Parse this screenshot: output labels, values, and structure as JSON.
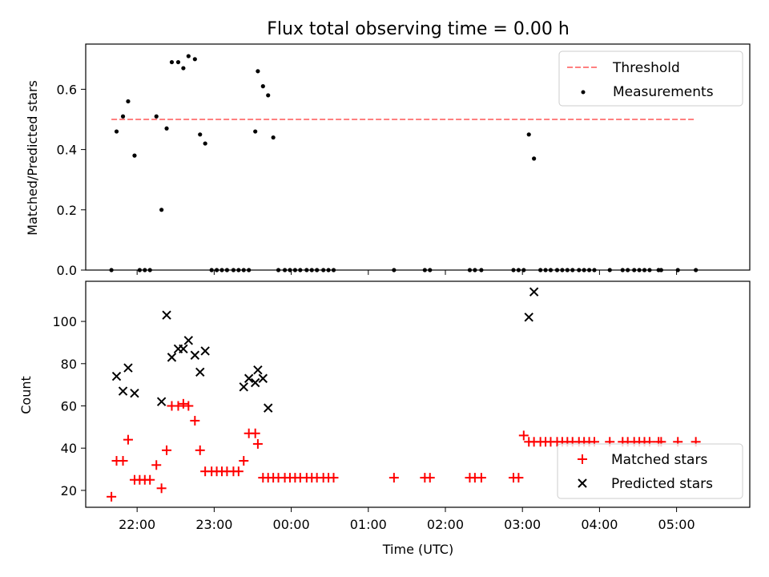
{
  "chart_data": [
    {
      "type": "scatter",
      "title": "Flux total observing time = 0.00 h",
      "xlabel": "",
      "ylabel": "Matched/Predicted stars",
      "xlim": [
        21.333,
        5.95
      ],
      "ylim": [
        0.0,
        0.75
      ],
      "yticks": [
        "0.0",
        "0.2",
        "0.4",
        "0.6"
      ],
      "yticks_values": [
        0.0,
        0.2,
        0.4,
        0.6
      ],
      "legend_position": "top-right",
      "threshold": {
        "name": "Threshold",
        "value": 0.5,
        "x_start": "21:40",
        "x_end": "05:15",
        "color": "#ff8080"
      },
      "series": [
        {
          "name": "Measurements",
          "color": "#000000",
          "marker": "dot",
          "x": [
            "21:40",
            "21:44",
            "21:49",
            "21:53",
            "21:58",
            "22:02",
            "22:06",
            "22:10",
            "22:15",
            "22:19",
            "22:23",
            "22:27",
            "22:32",
            "22:36",
            "22:40",
            "22:45",
            "22:49",
            "22:53",
            "22:58",
            "23:02",
            "23:06",
            "23:10",
            "23:15",
            "23:19",
            "23:23",
            "23:27",
            "23:32",
            "23:34",
            "23:38",
            "23:42",
            "23:46",
            "23:50",
            "23:55",
            "23:59",
            "00:03",
            "00:07",
            "00:12",
            "00:16",
            "00:20",
            "00:25",
            "00:29",
            "00:33",
            "01:20",
            "01:44",
            "01:48",
            "02:19",
            "02:23",
            "02:28",
            "02:53",
            "02:57",
            "03:01",
            "03:05",
            "03:09",
            "03:14",
            "03:18",
            "03:22",
            "03:27",
            "03:31",
            "03:35",
            "03:39",
            "03:44",
            "03:48",
            "03:52",
            "03:56",
            "04:08",
            "04:18",
            "04:22",
            "04:27",
            "04:31",
            "04:35",
            "04:39",
            "04:46",
            "04:48",
            "05:01",
            "05:15"
          ],
          "y": [
            0.0,
            0.46,
            0.51,
            0.56,
            0.38,
            0.0,
            0.0,
            0.0,
            0.51,
            0.2,
            0.47,
            0.69,
            0.69,
            0.67,
            0.71,
            0.7,
            0.45,
            0.42,
            0.0,
            0.0,
            0.0,
            0.0,
            0.0,
            0.0,
            0.0,
            0.0,
            0.46,
            0.66,
            0.61,
            0.58,
            0.44,
            0.0,
            0.0,
            0.0,
            0.0,
            0.0,
            0.0,
            0.0,
            0.0,
            0.0,
            0.0,
            0.0,
            0.0,
            0.0,
            0.0,
            0.0,
            0.0,
            0.0,
            0.0,
            0.0,
            0.0,
            0.45,
            0.37,
            0.0,
            0.0,
            0.0,
            0.0,
            0.0,
            0.0,
            0.0,
            0.0,
            0.0,
            0.0,
            0.0,
            0.0,
            0.0,
            0.0,
            0.0,
            0.0,
            0.0,
            0.0,
            0.0,
            0.0,
            0.0,
            0.0
          ]
        }
      ]
    },
    {
      "type": "scatter",
      "title": "",
      "xlabel": "Time (UTC)",
      "ylabel": "Count",
      "xlim": [
        21.333,
        5.95
      ],
      "ylim": [
        12,
        119
      ],
      "yticks": [
        "20",
        "40",
        "60",
        "80",
        "100"
      ],
      "yticks_values": [
        20,
        40,
        60,
        80,
        100
      ],
      "xticks": [
        "22:00",
        "23:00",
        "00:00",
        "01:00",
        "02:00",
        "03:00",
        "04:00",
        "05:00"
      ],
      "xticks_values": [
        "22:00",
        "23:00",
        "00:00",
        "01:00",
        "02:00",
        "03:00",
        "04:00",
        "05:00"
      ],
      "legend_position": "bottom-right",
      "series": [
        {
          "name": "Matched stars",
          "color": "#ff0000",
          "marker": "plus",
          "x": [
            "21:40",
            "21:44",
            "21:49",
            "21:53",
            "21:58",
            "22:02",
            "22:06",
            "22:10",
            "22:15",
            "22:19",
            "22:23",
            "22:27",
            "22:32",
            "22:36",
            "22:40",
            "22:45",
            "22:49",
            "22:53",
            "22:58",
            "23:02",
            "23:06",
            "23:10",
            "23:15",
            "23:19",
            "23:23",
            "23:27",
            "23:32",
            "23:34",
            "23:38",
            "23:42",
            "23:46",
            "23:50",
            "23:55",
            "23:59",
            "00:03",
            "00:07",
            "00:12",
            "00:16",
            "00:20",
            "00:25",
            "00:29",
            "00:33",
            "01:20",
            "01:44",
            "01:48",
            "02:19",
            "02:23",
            "02:28",
            "02:53",
            "02:57",
            "03:01",
            "03:05",
            "03:09",
            "03:14",
            "03:18",
            "03:22",
            "03:27",
            "03:31",
            "03:35",
            "03:39",
            "03:44",
            "03:48",
            "03:52",
            "03:56",
            "04:08",
            "04:18",
            "04:22",
            "04:27",
            "04:31",
            "04:35",
            "04:39",
            "04:46",
            "04:48",
            "05:01",
            "05:15"
          ],
          "y": [
            17,
            34,
            34,
            44,
            25,
            25,
            25,
            25,
            32,
            21,
            39,
            60,
            60,
            61,
            60,
            53,
            39,
            29,
            29,
            29,
            29,
            29,
            29,
            29,
            34,
            47,
            47,
            42,
            26,
            26,
            26,
            26,
            26,
            26,
            26,
            26,
            26,
            26,
            26,
            26,
            26,
            26,
            26,
            26,
            26,
            26,
            26,
            26,
            26,
            26,
            46,
            43,
            43,
            43,
            43,
            43,
            43,
            43,
            43,
            43,
            43,
            43,
            43,
            43,
            43,
            43,
            43,
            43,
            43,
            43,
            43,
            43,
            43,
            43,
            43
          ]
        },
        {
          "name": "Predicted stars",
          "color": "#000000",
          "marker": "x",
          "x": [
            "21:44",
            "21:49",
            "21:53",
            "21:58",
            "22:19",
            "22:23",
            "22:27",
            "22:32",
            "22:36",
            "22:40",
            "22:45",
            "22:49",
            "22:53",
            "23:23",
            "23:27",
            "23:32",
            "23:34",
            "23:38",
            "23:42",
            "03:05",
            "03:09"
          ],
          "y": [
            74,
            67,
            78,
            66,
            62,
            103,
            83,
            87,
            87,
            91,
            84,
            76,
            86,
            69,
            73,
            71,
            77,
            73,
            59,
            102,
            114
          ]
        }
      ]
    }
  ]
}
